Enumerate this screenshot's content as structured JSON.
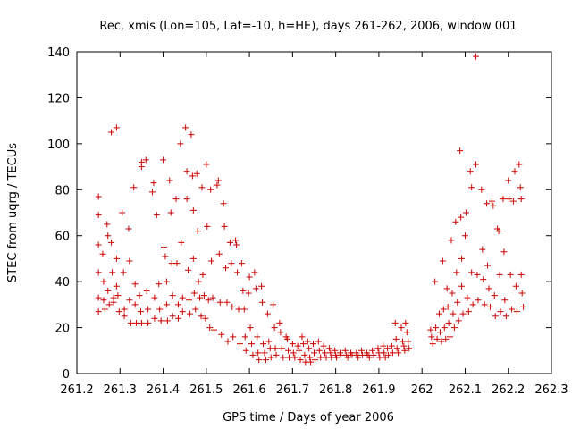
{
  "chart_data": {
    "type": "scatter",
    "title": "Rec. xmis (Lon=105, Lat=-10, h=HE), days 261-262, 2006, window 001",
    "xlabel": "GPS time / Days of year 2006",
    "ylabel": "STEC from uqrg / TECUs",
    "xlim": [
      261.2,
      262.3
    ],
    "ylim": [
      0,
      140
    ],
    "xticks": [
      261.2,
      261.3,
      261.4,
      261.5,
      261.6,
      261.7,
      261.8,
      261.9,
      262.0,
      262.1,
      262.2,
      262.3
    ],
    "xtick_labels": [
      "261.2",
      "261.3",
      "261.4",
      "261.5",
      "261.6",
      "261.7",
      "261.8",
      "261.9",
      "262",
      "262.1",
      "262.2",
      "262.3"
    ],
    "yticks": [
      0,
      20,
      40,
      60,
      80,
      100,
      120,
      140
    ],
    "ytick_labels": [
      "0",
      "20",
      "40",
      "60",
      "80",
      "100",
      "120",
      "140"
    ],
    "grid": false,
    "legend": "none",
    "marker": "+",
    "color": "#cc0000",
    "series": [
      {
        "points": [
          [
            261.25,
            77
          ],
          [
            261.25,
            69
          ],
          [
            261.25,
            56
          ],
          [
            261.25,
            44
          ],
          [
            261.25,
            33
          ],
          [
            261.25,
            27
          ],
          [
            261.26,
            52
          ],
          [
            261.262,
            40
          ],
          [
            261.262,
            32
          ],
          [
            261.265,
            28
          ],
          [
            261.27,
            65
          ],
          [
            261.272,
            60
          ],
          [
            261.272,
            36
          ],
          [
            261.275,
            30
          ],
          [
            261.28,
            105
          ],
          [
            261.28,
            57
          ],
          [
            261.282,
            44
          ],
          [
            261.285,
            33
          ],
          [
            261.285,
            31
          ],
          [
            261.292,
            107
          ],
          [
            261.292,
            50
          ],
          [
            261.292,
            38
          ],
          [
            261.295,
            34
          ],
          [
            261.298,
            27
          ],
          [
            261.305,
            70
          ],
          [
            261.308,
            44
          ],
          [
            261.31,
            28
          ],
          [
            261.31,
            25
          ],
          [
            261.32,
            63
          ],
          [
            261.322,
            49
          ],
          [
            261.322,
            32
          ],
          [
            261.325,
            22
          ],
          [
            261.332,
            81
          ],
          [
            261.335,
            39
          ],
          [
            261.335,
            30
          ],
          [
            261.338,
            22
          ],
          [
            261.345,
            34
          ],
          [
            261.348,
            27
          ],
          [
            261.35,
            90
          ],
          [
            261.35,
            92
          ],
          [
            261.35,
            22
          ],
          [
            261.36,
            93
          ],
          [
            261.362,
            36
          ],
          [
            261.365,
            28
          ],
          [
            261.365,
            22
          ],
          [
            261.375,
            79
          ],
          [
            261.378,
            83
          ],
          [
            261.38,
            33
          ],
          [
            261.38,
            24
          ],
          [
            261.385,
            69
          ],
          [
            261.39,
            39
          ],
          [
            261.392,
            28
          ],
          [
            261.395,
            23
          ],
          [
            261.4,
            93
          ],
          [
            261.402,
            55
          ],
          [
            261.405,
            51
          ],
          [
            261.408,
            40
          ],
          [
            261.408,
            30
          ],
          [
            261.41,
            23
          ],
          [
            261.415,
            84
          ],
          [
            261.418,
            70
          ],
          [
            261.42,
            48
          ],
          [
            261.422,
            34
          ],
          [
            261.422,
            25
          ],
          [
            261.43,
            76
          ],
          [
            261.432,
            48
          ],
          [
            261.435,
            30
          ],
          [
            261.435,
            24
          ],
          [
            261.44,
            100
          ],
          [
            261.442,
            57
          ],
          [
            261.445,
            33
          ],
          [
            261.445,
            27
          ],
          [
            261.452,
            107
          ],
          [
            261.455,
            88
          ],
          [
            261.455,
            76
          ],
          [
            261.458,
            45
          ],
          [
            261.46,
            32
          ],
          [
            261.462,
            26
          ],
          [
            261.465,
            104
          ],
          [
            261.468,
            86
          ],
          [
            261.47,
            71
          ],
          [
            261.47,
            50
          ],
          [
            261.472,
            35
          ],
          [
            261.475,
            28
          ],
          [
            261.478,
            87
          ],
          [
            261.48,
            62
          ],
          [
            261.482,
            40
          ],
          [
            261.485,
            33
          ],
          [
            261.488,
            25
          ],
          [
            261.49,
            81
          ],
          [
            261.492,
            43
          ],
          [
            261.495,
            34
          ],
          [
            261.498,
            24
          ],
          [
            261.5,
            91
          ],
          [
            261.502,
            64
          ],
          [
            261.505,
            32
          ],
          [
            261.508,
            20
          ],
          [
            261.51,
            80
          ],
          [
            261.512,
            49
          ],
          [
            261.515,
            33
          ],
          [
            261.518,
            19
          ],
          [
            261.525,
            82
          ],
          [
            261.528,
            84
          ],
          [
            261.53,
            52
          ],
          [
            261.532,
            31
          ],
          [
            261.535,
            17
          ],
          [
            261.54,
            74
          ],
          [
            261.542,
            64
          ],
          [
            261.545,
            46
          ],
          [
            261.548,
            31
          ],
          [
            261.55,
            14
          ],
          [
            261.555,
            57
          ],
          [
            261.558,
            48
          ],
          [
            261.56,
            29
          ],
          [
            261.562,
            16
          ],
          [
            261.568,
            58
          ],
          [
            261.57,
            56
          ],
          [
            261.572,
            44
          ],
          [
            261.575,
            28
          ],
          [
            261.578,
            13
          ],
          [
            261.582,
            48
          ],
          [
            261.585,
            36
          ],
          [
            261.588,
            28
          ],
          [
            261.59,
            16
          ],
          [
            261.592,
            10
          ],
          [
            261.598,
            35
          ],
          [
            261.6,
            42
          ],
          [
            261.602,
            20
          ],
          [
            261.605,
            13
          ],
          [
            261.608,
            8
          ],
          [
            261.612,
            44
          ],
          [
            261.615,
            37
          ],
          [
            261.618,
            16
          ],
          [
            261.62,
            9
          ],
          [
            261.622,
            6
          ],
          [
            261.628,
            38
          ],
          [
            261.63,
            31
          ],
          [
            261.632,
            13
          ],
          [
            261.635,
            9
          ],
          [
            261.638,
            6
          ],
          [
            261.642,
            26
          ],
          [
            261.645,
            14
          ],
          [
            261.648,
            11
          ],
          [
            261.65,
            7
          ],
          [
            261.655,
            30
          ],
          [
            261.658,
            20
          ],
          [
            261.66,
            11
          ],
          [
            261.662,
            8
          ],
          [
            261.67,
            22
          ],
          [
            261.672,
            18
          ],
          [
            261.675,
            11
          ],
          [
            261.678,
            7
          ],
          [
            261.685,
            16
          ],
          [
            261.688,
            15
          ],
          [
            261.69,
            10
          ],
          [
            261.692,
            7
          ],
          [
            261.7,
            13
          ],
          [
            261.702,
            9
          ],
          [
            261.705,
            7
          ],
          [
            261.712,
            12
          ],
          [
            261.715,
            10
          ],
          [
            261.718,
            6
          ],
          [
            261.722,
            16
          ],
          [
            261.725,
            13
          ],
          [
            261.728,
            8
          ],
          [
            261.73,
            5
          ],
          [
            261.735,
            14
          ],
          [
            261.738,
            11
          ],
          [
            261.74,
            7
          ],
          [
            261.742,
            5
          ],
          [
            261.748,
            13
          ],
          [
            261.75,
            9
          ],
          [
            261.752,
            6
          ],
          [
            261.76,
            14
          ],
          [
            261.762,
            10
          ],
          [
            261.765,
            7
          ],
          [
            261.772,
            12
          ],
          [
            261.775,
            9
          ],
          [
            261.778,
            7
          ],
          [
            261.785,
            11
          ],
          [
            261.788,
            9
          ],
          [
            261.79,
            7
          ],
          [
            261.798,
            10
          ],
          [
            261.8,
            8
          ],
          [
            261.802,
            7
          ],
          [
            261.81,
            9
          ],
          [
            261.812,
            8
          ],
          [
            261.822,
            10
          ],
          [
            261.825,
            8
          ],
          [
            261.828,
            7
          ],
          [
            261.835,
            9
          ],
          [
            261.838,
            8
          ],
          [
            261.848,
            9
          ],
          [
            261.85,
            8
          ],
          [
            261.852,
            7
          ],
          [
            261.86,
            10
          ],
          [
            261.862,
            8
          ],
          [
            261.872,
            9
          ],
          [
            261.875,
            8
          ],
          [
            261.878,
            7
          ],
          [
            261.885,
            10
          ],
          [
            261.888,
            8
          ],
          [
            261.898,
            11
          ],
          [
            261.9,
            9
          ],
          [
            261.902,
            7
          ],
          [
            261.91,
            12
          ],
          [
            261.912,
            9
          ],
          [
            261.915,
            7
          ],
          [
            261.92,
            11
          ],
          [
            261.922,
            8
          ],
          [
            261.93,
            12
          ],
          [
            261.932,
            9
          ],
          [
            261.938,
            22
          ],
          [
            261.94,
            15
          ],
          [
            261.942,
            11
          ],
          [
            261.945,
            9
          ],
          [
            261.952,
            20
          ],
          [
            261.955,
            14
          ],
          [
            261.958,
            12
          ],
          [
            261.96,
            10
          ],
          [
            261.962,
            22
          ],
          [
            261.965,
            18
          ],
          [
            261.968,
            14
          ],
          [
            261.97,
            11
          ],
          [
            262.02,
            19
          ],
          [
            262.022,
            16
          ],
          [
            262.025,
            13
          ],
          [
            262.03,
            40
          ],
          [
            262.032,
            20
          ],
          [
            262.035,
            15
          ],
          [
            262.04,
            26
          ],
          [
            262.042,
            18
          ],
          [
            262.045,
            14
          ],
          [
            262.048,
            49
          ],
          [
            262.05,
            28
          ],
          [
            262.052,
            20
          ],
          [
            262.055,
            15
          ],
          [
            262.058,
            37
          ],
          [
            262.06,
            29
          ],
          [
            262.062,
            22
          ],
          [
            262.065,
            16
          ],
          [
            262.068,
            58
          ],
          [
            262.07,
            35
          ],
          [
            262.072,
            26
          ],
          [
            262.075,
            20
          ],
          [
            262.078,
            66
          ],
          [
            262.08,
            44
          ],
          [
            262.082,
            31
          ],
          [
            262.085,
            23
          ],
          [
            262.088,
            97
          ],
          [
            262.09,
            68
          ],
          [
            262.092,
            50
          ],
          [
            262.092,
            38
          ],
          [
            262.095,
            26
          ],
          [
            262.1,
            60
          ],
          [
            262.102,
            70
          ],
          [
            262.105,
            33
          ],
          [
            262.108,
            27
          ],
          [
            262.112,
            88
          ],
          [
            262.115,
            81
          ],
          [
            262.115,
            44
          ],
          [
            262.118,
            30
          ],
          [
            262.125,
            138
          ],
          [
            262.125,
            91
          ],
          [
            262.128,
            43
          ],
          [
            262.13,
            32
          ],
          [
            262.138,
            80
          ],
          [
            262.14,
            54
          ],
          [
            262.142,
            41
          ],
          [
            262.145,
            30
          ],
          [
            262.15,
            74
          ],
          [
            262.152,
            47
          ],
          [
            262.155,
            37
          ],
          [
            262.158,
            29
          ],
          [
            262.162,
            75
          ],
          [
            262.165,
            73
          ],
          [
            262.168,
            34
          ],
          [
            262.17,
            25
          ],
          [
            262.175,
            63
          ],
          [
            262.178,
            62
          ],
          [
            262.18,
            43
          ],
          [
            262.182,
            27
          ],
          [
            262.188,
            76
          ],
          [
            262.19,
            53
          ],
          [
            262.192,
            32
          ],
          [
            262.195,
            25
          ],
          [
            262.2,
            84
          ],
          [
            262.202,
            76
          ],
          [
            262.205,
            43
          ],
          [
            262.208,
            28
          ],
          [
            262.212,
            75
          ],
          [
            262.215,
            88
          ],
          [
            262.218,
            38
          ],
          [
            262.22,
            27
          ],
          [
            262.225,
            91
          ],
          [
            262.228,
            81
          ],
          [
            262.23,
            76
          ],
          [
            262.23,
            43
          ],
          [
            262.232,
            35
          ],
          [
            262.235,
            29
          ]
        ]
      }
    ]
  }
}
